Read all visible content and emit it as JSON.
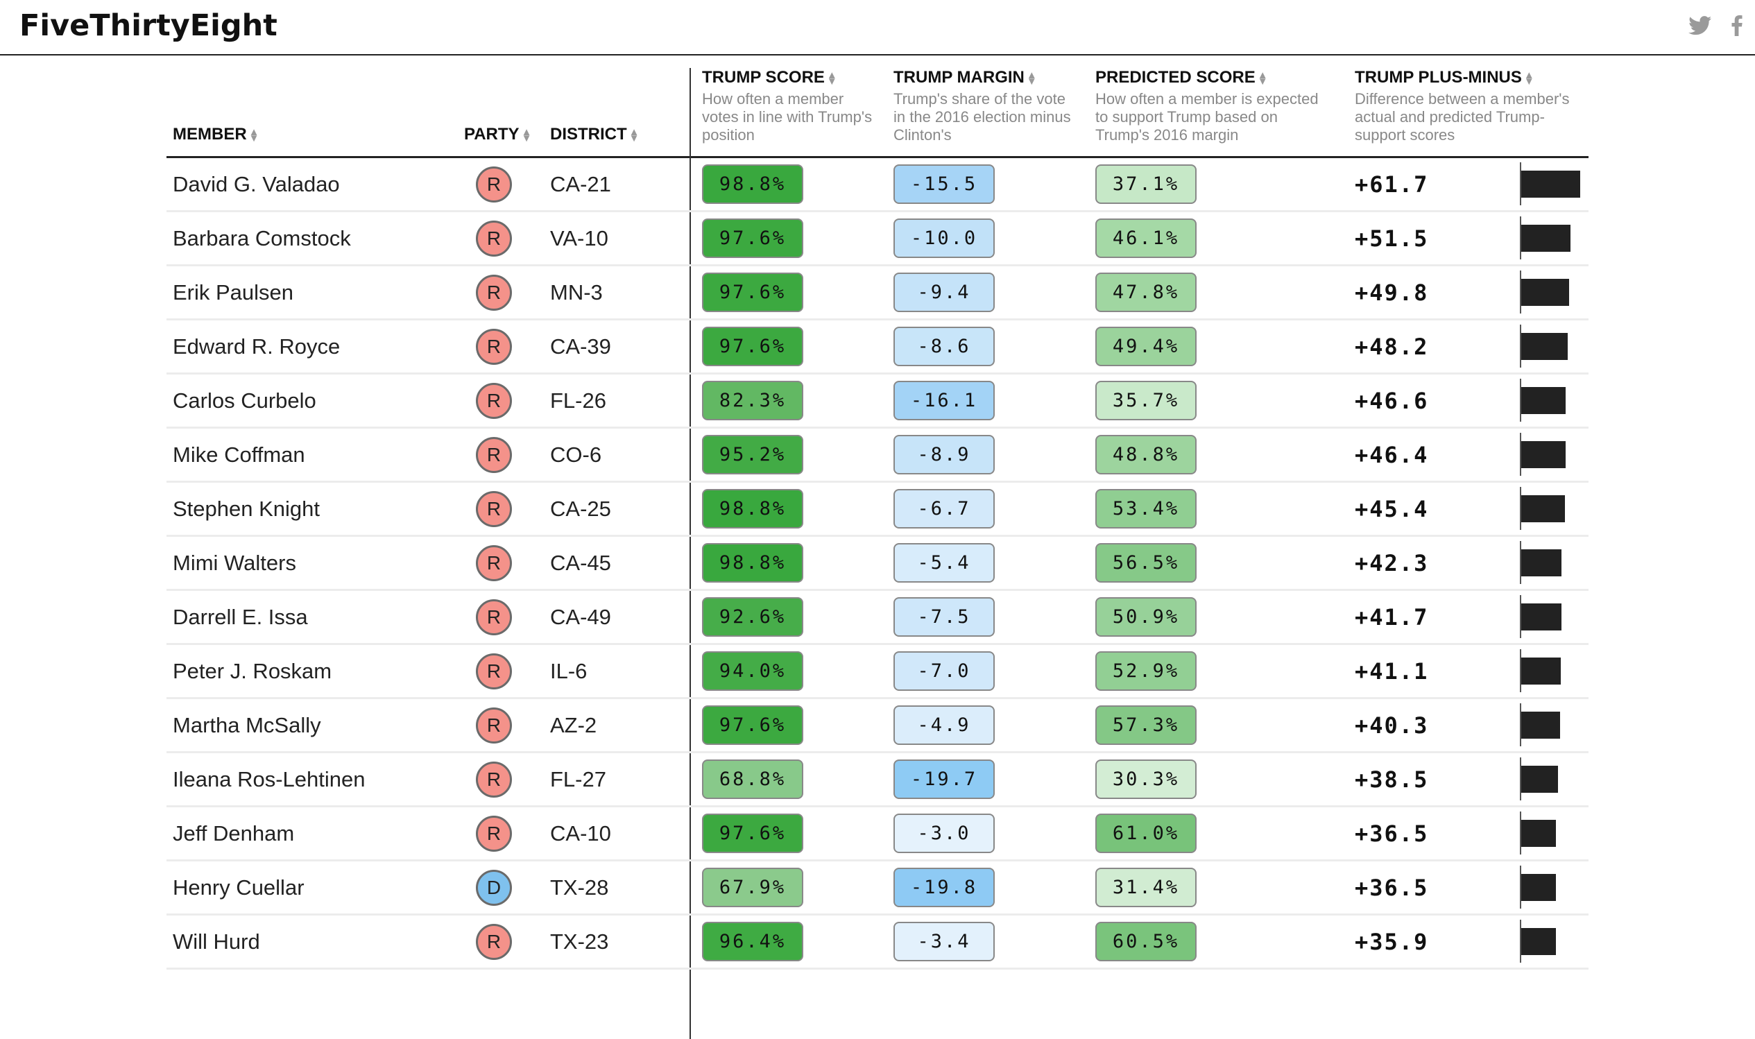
{
  "site": {
    "logo": "FiveThirtyEight",
    "icons": [
      "twitter-icon",
      "facebook-icon"
    ]
  },
  "columns": {
    "member": "MEMBER",
    "party": "PARTY",
    "district": "DISTRICT",
    "trump_score": {
      "title": "TRUMP SCORE",
      "desc": "How often a member votes in line with Trump's position"
    },
    "trump_margin": {
      "title": "TRUMP MARGIN",
      "desc": "Trump's share of the vote in the 2016 election minus Clinton's"
    },
    "predicted_score": {
      "title": "PREDICTED SCORE",
      "desc": "How often a member is expected to support Trump based on Trump's 2016 margin"
    },
    "plus_minus": {
      "title": "TRUMP PLUS-MINUS",
      "desc": "Difference between a member's actual and predicted Trump-support scores"
    }
  },
  "colors": {
    "republican": "#f4928a",
    "democrat": "#7fc1ee"
  },
  "rows": [
    {
      "name": "David G. Valadao",
      "party": "R",
      "district": "CA-21",
      "trump_score": "98.8%",
      "trump_margin": "-15.5",
      "predicted": "37.1%",
      "plus_minus": "+61.7",
      "bar_value": 61.7,
      "score_color": "#39a83e",
      "margin_color": "#a6d4f6",
      "pred_color": "#c6e8c7"
    },
    {
      "name": "Barbara Comstock",
      "party": "R",
      "district": "VA-10",
      "trump_score": "97.6%",
      "trump_margin": "-10.0",
      "predicted": "46.1%",
      "plus_minus": "+51.5",
      "bar_value": 51.5,
      "score_color": "#3ca940",
      "margin_color": "#c1e1f8",
      "pred_color": "#a5d9a6"
    },
    {
      "name": "Erik Paulsen",
      "party": "R",
      "district": "MN-3",
      "trump_score": "97.6%",
      "trump_margin": "-9.4",
      "predicted": "47.8%",
      "plus_minus": "+49.8",
      "bar_value": 49.8,
      "score_color": "#3ca940",
      "margin_color": "#c5e3f9",
      "pred_color": "#a0d6a1"
    },
    {
      "name": "Edward R. Royce",
      "party": "R",
      "district": "CA-39",
      "trump_score": "97.6%",
      "trump_margin": "-8.6",
      "predicted": "49.4%",
      "plus_minus": "+48.2",
      "bar_value": 48.2,
      "score_color": "#3ca940",
      "margin_color": "#c8e5f9",
      "pred_color": "#9bd39c"
    },
    {
      "name": "Carlos Curbelo",
      "party": "R",
      "district": "FL-26",
      "trump_score": "82.3%",
      "trump_margin": "-16.1",
      "predicted": "35.7%",
      "plus_minus": "+46.6",
      "bar_value": 46.6,
      "score_color": "#62b863",
      "margin_color": "#a3d3f6",
      "pred_color": "#c9e9ca"
    },
    {
      "name": "Mike Coffman",
      "party": "R",
      "district": "CO-6",
      "trump_score": "95.2%",
      "trump_margin": "-8.9",
      "predicted": "48.8%",
      "plus_minus": "+46.4",
      "bar_value": 46.4,
      "score_color": "#42ab45",
      "margin_color": "#c7e4f9",
      "pred_color": "#9dd49e"
    },
    {
      "name": "Stephen Knight",
      "party": "R",
      "district": "CA-25",
      "trump_score": "98.8%",
      "trump_margin": "-6.7",
      "predicted": "53.4%",
      "plus_minus": "+45.4",
      "bar_value": 45.4,
      "score_color": "#39a83e",
      "margin_color": "#d3e9fa",
      "pred_color": "#90ce92"
    },
    {
      "name": "Mimi Walters",
      "party": "R",
      "district": "CA-45",
      "trump_score": "98.8%",
      "trump_margin": "-5.4",
      "predicted": "56.5%",
      "plus_minus": "+42.3",
      "bar_value": 42.3,
      "score_color": "#39a83e",
      "margin_color": "#d8ecfb",
      "pred_color": "#86c988"
    },
    {
      "name": "Darrell E. Issa",
      "party": "R",
      "district": "CA-49",
      "trump_score": "92.6%",
      "trump_margin": "-7.5",
      "predicted": "50.9%",
      "plus_minus": "+41.7",
      "bar_value": 41.7,
      "score_color": "#47ad4a",
      "margin_color": "#cee7fa",
      "pred_color": "#97d199"
    },
    {
      "name": "Peter J. Roskam",
      "party": "R",
      "district": "IL-6",
      "trump_score": "94.0%",
      "trump_margin": "-7.0",
      "predicted": "52.9%",
      "plus_minus": "+41.1",
      "bar_value": 41.1,
      "score_color": "#44ac47",
      "margin_color": "#d1e8fa",
      "pred_color": "#92cf94"
    },
    {
      "name": "Martha McSally",
      "party": "R",
      "district": "AZ-2",
      "trump_score": "97.6%",
      "trump_margin": "-4.9",
      "predicted": "57.3%",
      "plus_minus": "+40.3",
      "bar_value": 40.3,
      "score_color": "#3ca940",
      "margin_color": "#dbedfb",
      "pred_color": "#84c886"
    },
    {
      "name": "Ileana Ros-Lehtinen",
      "party": "R",
      "district": "FL-27",
      "trump_score": "68.8%",
      "trump_margin": "-19.7",
      "predicted": "30.3%",
      "plus_minus": "+38.5",
      "bar_value": 38.5,
      "score_color": "#88c98a",
      "margin_color": "#8ecbf4",
      "pred_color": "#d3edd4"
    },
    {
      "name": "Jeff Denham",
      "party": "R",
      "district": "CA-10",
      "trump_score": "97.6%",
      "trump_margin": "-3.0",
      "predicted": "61.0%",
      "plus_minus": "+36.5",
      "bar_value": 36.5,
      "score_color": "#3ca940",
      "margin_color": "#e5f2fc",
      "pred_color": "#78c37a"
    },
    {
      "name": "Henry Cuellar",
      "party": "D",
      "district": "TX-28",
      "trump_score": "67.9%",
      "trump_margin": "-19.8",
      "predicted": "31.4%",
      "plus_minus": "+36.5",
      "bar_value": 36.5,
      "score_color": "#8bca8c",
      "margin_color": "#8ecaf4",
      "pred_color": "#d1ecd2"
    },
    {
      "name": "Will Hurd",
      "party": "R",
      "district": "TX-23",
      "trump_score": "96.4%",
      "trump_margin": "-3.4",
      "predicted": "60.5%",
      "plus_minus": "+35.9",
      "bar_value": 35.9,
      "score_color": "#3fab43",
      "margin_color": "#e3f1fc",
      "pred_color": "#7ac47c"
    }
  ]
}
